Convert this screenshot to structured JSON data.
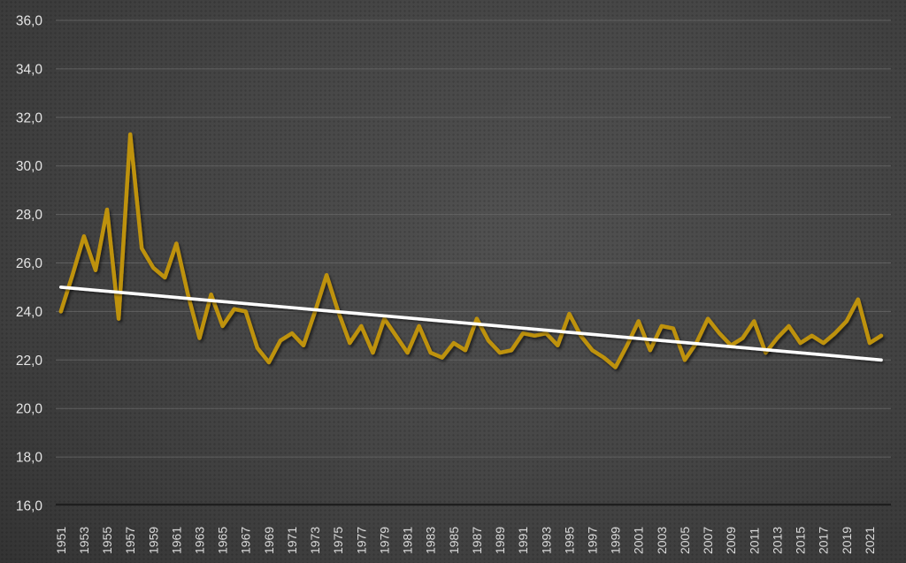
{
  "chart_data": {
    "type": "line",
    "title": "",
    "start_year": 1951,
    "end_year": 2022,
    "x_tick_labels": [
      "1951",
      "1953",
      "1955",
      "1957",
      "1959",
      "1961",
      "1963",
      "1965",
      "1967",
      "1969",
      "1971",
      "1973",
      "1975",
      "1977",
      "1979",
      "1981",
      "1983",
      "1985",
      "1987",
      "1989",
      "1991",
      "1993",
      "1995",
      "1997",
      "1999",
      "2001",
      "2003",
      "2005",
      "2007",
      "2009",
      "2011",
      "2013",
      "2015",
      "2017",
      "2019",
      "2021"
    ],
    "y_tick_labels": [
      "36,0",
      "34,0",
      "32,0",
      "30,0",
      "28,0",
      "26,0",
      "24,0",
      "22,0",
      "20,0",
      "18,0",
      "16,0"
    ],
    "y_min": 16,
    "y_max": 36,
    "y_step": 2,
    "grid": "horizontal",
    "legend_position": "none",
    "series": [
      {
        "name": "annual-value",
        "color": "#BE920E",
        "start_year": 1951,
        "values": [
          24.0,
          25.5,
          27.1,
          25.7,
          28.2,
          23.7,
          31.3,
          26.6,
          25.8,
          25.4,
          26.8,
          24.7,
          22.9,
          24.7,
          23.4,
          24.1,
          24.0,
          22.5,
          21.9,
          22.8,
          23.1,
          22.6,
          24.0,
          25.5,
          24.0,
          22.7,
          23.4,
          22.3,
          23.7,
          23.0,
          22.3,
          23.4,
          22.3,
          22.1,
          22.7,
          22.4,
          23.7,
          22.8,
          22.3,
          22.4,
          23.1,
          23.0,
          23.1,
          22.6,
          23.9,
          23.0,
          22.4,
          22.1,
          21.7,
          22.6,
          23.6,
          22.4,
          23.4,
          23.3,
          22.0,
          22.7,
          23.7,
          23.1,
          22.6,
          22.9,
          23.6,
          22.3,
          22.9,
          23.4,
          22.7,
          23.0,
          22.7,
          23.1,
          23.6,
          24.5,
          22.7,
          23.0
        ]
      }
    ],
    "trendline": {
      "name": "linear-trend",
      "color": "#FFFFFF",
      "start_value": 25.0,
      "end_value": 22.0
    },
    "colors": {
      "background_center": "#505050",
      "background_edge": "#1f1f1f",
      "gridline": "#6b6b6b",
      "axis_line": "#1e1e1e",
      "tick_label": "#e4e4e4",
      "series_line": "#BE920E",
      "trend_line": "#FFFFFF"
    }
  }
}
